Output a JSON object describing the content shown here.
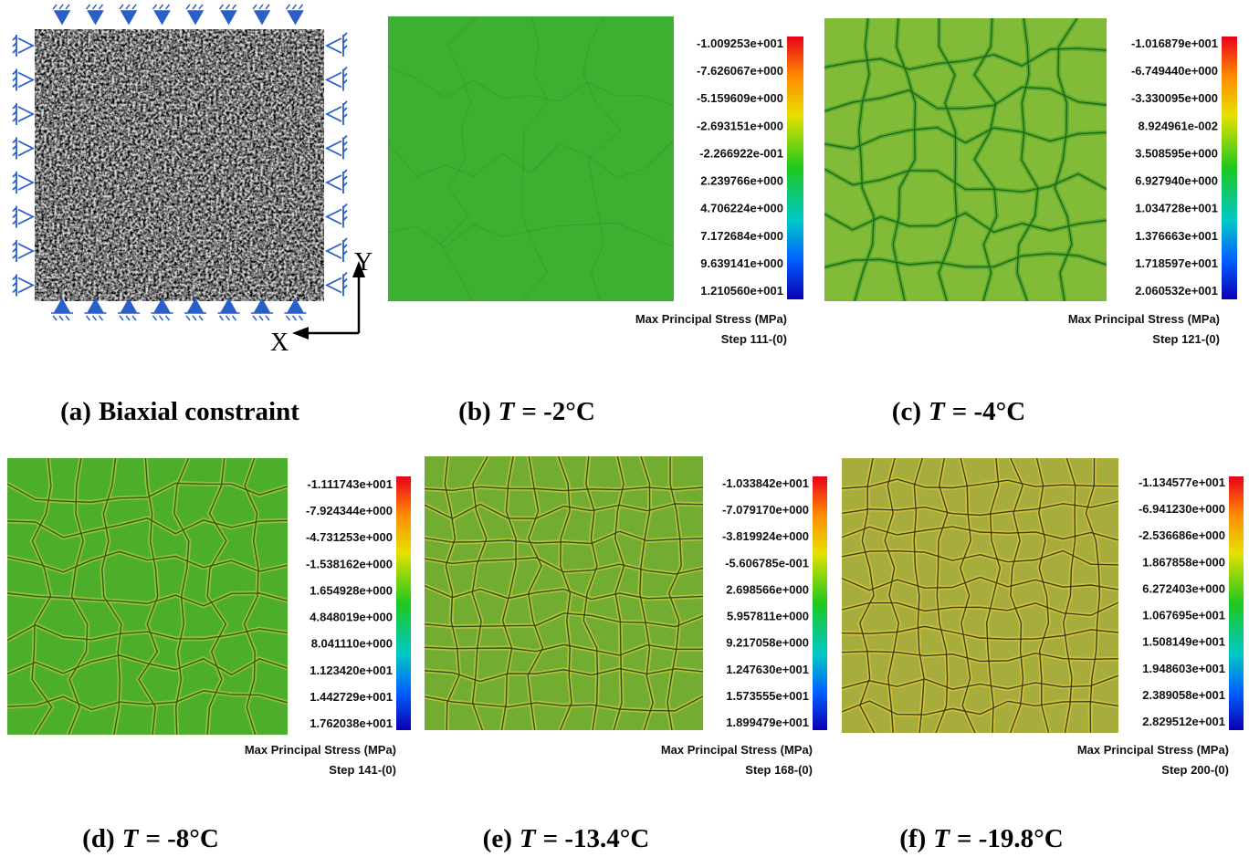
{
  "panels": [
    {
      "caption": {
        "label": "(a)",
        "text": "Biaxial constraint"
      },
      "axes": {
        "x": "X",
        "y": "Y"
      }
    },
    {
      "caption": {
        "label": "(b)",
        "symbol": "T",
        "text": "= -2°C"
      },
      "legend": {
        "title": "Max Principal Stress (MPa)",
        "step": "Step 111-(0)",
        "labels": [
          "-1.009253e+001",
          "-7.626067e+000",
          "-5.159609e+000",
          "-2.693151e+000",
          "-2.266922e-001",
          "2.239766e+000",
          "4.706224e+000",
          "7.172684e+000",
          "9.639141e+000",
          "1.210560e+001"
        ]
      }
    },
    {
      "caption": {
        "label": "(c)",
        "symbol": "T",
        "text": "= -4°C"
      },
      "legend": {
        "title": "Max Principal Stress (MPa)",
        "step": "Step 121-(0)",
        "labels": [
          "-1.016879e+001",
          "-6.749440e+000",
          "-3.330095e+000",
          "8.924961e-002",
          "3.508595e+000",
          "6.927940e+000",
          "1.034728e+001",
          "1.376663e+001",
          "1.718597e+001",
          "2.060532e+001"
        ]
      }
    },
    {
      "caption": {
        "label": "(d)",
        "symbol": "T",
        "text": "= -8°C"
      },
      "legend": {
        "title": "Max Principal Stress (MPa)",
        "step": "Step 141-(0)",
        "labels": [
          "-1.111743e+001",
          "-7.924344e+000",
          "-4.731253e+000",
          "-1.538162e+000",
          "1.654928e+000",
          "4.848019e+000",
          "8.041110e+000",
          "1.123420e+001",
          "1.442729e+001",
          "1.762038e+001"
        ]
      }
    },
    {
      "caption": {
        "label": "(e)",
        "symbol": "T",
        "text": "= -13.4°C"
      },
      "legend": {
        "title": "Max Principal Stress (MPa)",
        "step": "Step 168-(0)",
        "labels": [
          "-1.033842e+001",
          "-7.079170e+000",
          "-3.819924e+000",
          "-5.606785e-001",
          "2.698566e+000",
          "5.957811e+000",
          "9.217058e+000",
          "1.247630e+001",
          "1.573555e+001",
          "1.899479e+001"
        ]
      }
    },
    {
      "caption": {
        "label": "(f)",
        "symbol": "T",
        "text": "= -19.8°C"
      },
      "legend": {
        "title": "Max Principal Stress (MPa)",
        "step": "Step 200-(0)",
        "labels": [
          "-1.134577e+001",
          "-6.941230e+000",
          "-2.536686e+000",
          "1.867858e+000",
          "6.272403e+000",
          "1.067695e+001",
          "1.508149e+001",
          "1.948603e+001",
          "2.389058e+001",
          "2.829512e+001"
        ]
      }
    }
  ]
}
